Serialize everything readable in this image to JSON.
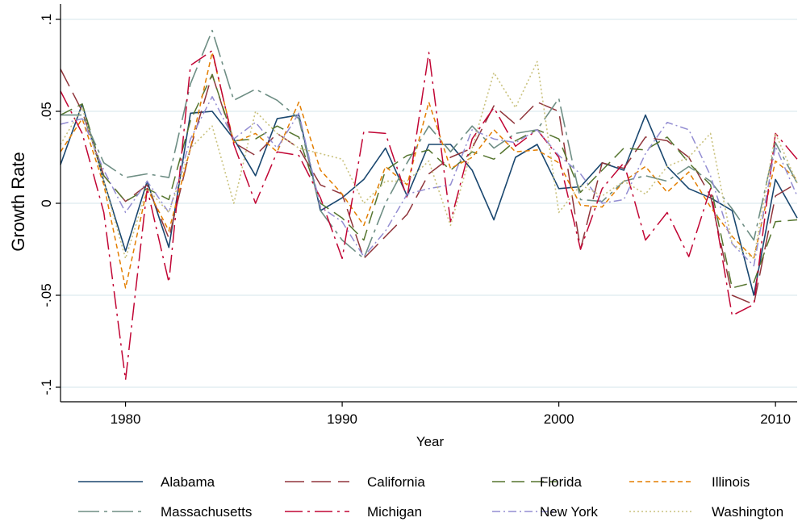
{
  "chart_data": {
    "type": "line",
    "title": "",
    "xlabel": "Year",
    "ylabel": "Growth Rate",
    "xlim": [
      1977,
      2011
    ],
    "ylim": [
      -0.1,
      0.1
    ],
    "x_ticks": [
      1980,
      1990,
      2000,
      2010
    ],
    "x_tick_labels": [
      "1980",
      "1990",
      "2000",
      "2010"
    ],
    "y_ticks": [
      -0.1,
      -0.05,
      0,
      0.05,
      0.1
    ],
    "y_tick_labels": [
      "-.1",
      "-.05",
      "0",
      ".05",
      ".1"
    ],
    "grid": true,
    "legend_position": "bottom",
    "x": [
      1977,
      1978,
      1979,
      1980,
      1981,
      1982,
      1983,
      1984,
      1985,
      1986,
      1987,
      1988,
      1989,
      1990,
      1991,
      1992,
      1993,
      1994,
      1995,
      1996,
      1997,
      1998,
      1999,
      2000,
      2001,
      2002,
      2003,
      2004,
      2005,
      2006,
      2007,
      2008,
      2009,
      2010,
      2011
    ],
    "series": [
      {
        "name": "Alabama",
        "color": "#1a476f",
        "dash": "",
        "width": 1.6,
        "values": [
          0.021,
          0.054,
          0.012,
          -0.026,
          0.012,
          -0.024,
          0.049,
          0.05,
          0.035,
          0.015,
          0.046,
          0.048,
          -0.004,
          0.003,
          0.013,
          0.03,
          0.004,
          0.032,
          0.032,
          0.018,
          -0.009,
          0.025,
          0.032,
          0.008,
          0.009,
          0.022,
          0.018,
          0.048,
          0.02,
          0.008,
          0.003,
          -0.004,
          -0.05,
          0.013,
          -0.008
        ]
      },
      {
        "name": "California",
        "color": "#90353b",
        "dash": "24,9",
        "width": 1.5,
        "values": [
          0.073,
          0.05,
          0.015,
          0.001,
          0.01,
          -0.019,
          0.03,
          0.07,
          0.033,
          0.026,
          0.038,
          0.03,
          0.01,
          0.005,
          -0.03,
          -0.018,
          -0.006,
          0.016,
          0.025,
          0.03,
          0.053,
          0.043,
          0.055,
          0.05,
          -0.025,
          0.022,
          0.019,
          0.036,
          0.034,
          0.025,
          0.004,
          -0.05,
          -0.055,
          0.004,
          0.011
        ]
      },
      {
        "name": "Florida",
        "color": "#55752f",
        "dash": "16,8",
        "width": 1.5,
        "values": [
          0.048,
          0.054,
          0.015,
          0.001,
          0.008,
          0.002,
          0.045,
          0.07,
          0.034,
          0.035,
          0.042,
          0.036,
          0.0,
          -0.008,
          -0.02,
          0.018,
          0.026,
          0.029,
          0.018,
          0.028,
          0.024,
          0.034,
          0.04,
          0.035,
          0.006,
          0.018,
          0.03,
          0.029,
          0.036,
          0.022,
          0.01,
          -0.046,
          -0.043,
          -0.01,
          -0.009
        ]
      },
      {
        "name": "Illinois",
        "color": "#e37e00",
        "dash": "6,4",
        "width": 1.5,
        "values": [
          0.028,
          0.046,
          0.01,
          -0.046,
          0.008,
          -0.015,
          0.03,
          0.082,
          0.033,
          0.038,
          0.028,
          0.055,
          0.018,
          0.005,
          -0.012,
          0.02,
          0.01,
          0.055,
          0.019,
          0.025,
          0.04,
          0.028,
          0.029,
          0.022,
          -0.001,
          -0.002,
          0.012,
          0.02,
          0.006,
          0.017,
          -0.002,
          -0.018,
          -0.03,
          0.023,
          0.013
        ]
      },
      {
        "name": "Massachusetts",
        "color": "#6e8e84",
        "dash": "26,6,4,6",
        "width": 1.6,
        "values": [
          0.048,
          0.048,
          0.022,
          0.014,
          0.016,
          0.014,
          0.065,
          0.094,
          0.056,
          0.062,
          0.056,
          0.046,
          -0.004,
          -0.02,
          -0.03,
          0.0,
          0.022,
          0.042,
          0.028,
          0.042,
          0.03,
          0.038,
          0.04,
          0.057,
          0.002,
          0.001,
          0.012,
          0.015,
          0.012,
          0.02,
          0.012,
          -0.003,
          -0.02,
          0.033,
          0.011
        ]
      },
      {
        "name": "Michigan",
        "color": "#c10534",
        "dash": "22,6,3,6",
        "width": 1.5,
        "values": [
          0.061,
          0.038,
          -0.005,
          -0.096,
          0.008,
          -0.043,
          0.075,
          0.083,
          0.032,
          0.0,
          0.028,
          0.026,
          0.003,
          -0.03,
          0.039,
          0.038,
          0.003,
          0.082,
          -0.01,
          0.035,
          0.052,
          0.031,
          0.04,
          0.025,
          -0.025,
          0.008,
          0.022,
          -0.02,
          -0.005,
          -0.029,
          0.008,
          -0.061,
          -0.055,
          0.038,
          0.024
        ]
      },
      {
        "name": "New York",
        "color": "#938dd2",
        "dash": "10,4,2,4",
        "width": 1.5,
        "values": [
          0.043,
          0.046,
          0.018,
          -0.005,
          0.012,
          -0.005,
          0.035,
          0.058,
          0.035,
          0.044,
          0.03,
          0.049,
          -0.002,
          -0.01,
          -0.029,
          -0.015,
          0.005,
          0.008,
          0.01,
          0.04,
          0.035,
          0.033,
          0.04,
          0.026,
          0.016,
          0.0,
          0.002,
          0.027,
          0.044,
          0.04,
          0.015,
          -0.022,
          -0.034,
          0.031,
          0.004
        ]
      },
      {
        "name": "Washington",
        "color": "#cac27e",
        "dash": "2,3",
        "width": 1.6,
        "values": [
          0.032,
          0.052,
          0.012,
          -0.03,
          0.008,
          -0.005,
          0.03,
          0.042,
          0.0,
          0.05,
          0.038,
          0.03,
          0.027,
          0.024,
          0.0,
          0.012,
          0.012,
          0.023,
          -0.012,
          0.03,
          0.071,
          0.052,
          0.077,
          -0.005,
          0.01,
          0.004,
          0.012,
          0.005,
          0.02,
          0.025,
          0.038,
          -0.022,
          -0.03,
          0.038,
          0.011
        ]
      }
    ]
  }
}
